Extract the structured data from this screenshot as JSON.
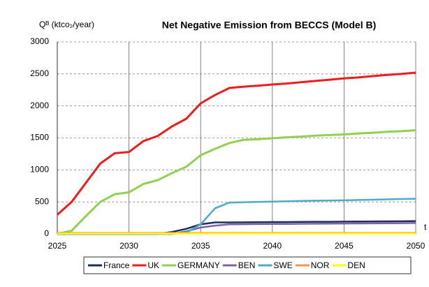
{
  "chart_data": {
    "type": "line",
    "title": "Net Negative Emission from BECCS (Model B)",
    "y_label": "Qᴮ (ktco₂/year)",
    "x_label": "t",
    "x": [
      2025,
      2026,
      2027,
      2028,
      2029,
      2030,
      2031,
      2032,
      2033,
      2034,
      2035,
      2036,
      2037,
      2038,
      2039,
      2040,
      2041,
      2042,
      2043,
      2044,
      2045,
      2046,
      2047,
      2048,
      2049,
      2050
    ],
    "series": [
      {
        "name": "France",
        "color": "#1f2d5c",
        "values": [
          0,
          0,
          0,
          0,
          0,
          0,
          0,
          0,
          30,
          80,
          150,
          180,
          180,
          182,
          184,
          185,
          186,
          188,
          189,
          190,
          192,
          194,
          195,
          196,
          198,
          200
        ]
      },
      {
        "name": "UK",
        "color": "#ee1c1c",
        "values": [
          300,
          500,
          800,
          1100,
          1260,
          1280,
          1450,
          1530,
          1680,
          1800,
          2040,
          2170,
          2280,
          2300,
          2315,
          2335,
          2350,
          2370,
          2390,
          2410,
          2430,
          2445,
          2465,
          2485,
          2500,
          2520
        ]
      },
      {
        "name": "GERMANY",
        "color": "#92d050",
        "values": [
          0,
          50,
          280,
          500,
          620,
          650,
          780,
          840,
          950,
          1050,
          1230,
          1330,
          1420,
          1470,
          1480,
          1495,
          1510,
          1520,
          1535,
          1545,
          1555,
          1570,
          1580,
          1595,
          1605,
          1620
        ]
      },
      {
        "name": "BEN",
        "color": "#8064a2",
        "values": [
          0,
          0,
          0,
          0,
          0,
          0,
          0,
          0,
          0,
          40,
          100,
          130,
          150,
          152,
          154,
          155,
          156,
          158,
          160,
          161,
          162,
          164,
          165,
          166,
          168,
          170
        ]
      },
      {
        "name": "SWE",
        "color": "#4bacc6",
        "values": [
          0,
          0,
          0,
          0,
          0,
          0,
          0,
          0,
          0,
          20,
          150,
          400,
          490,
          495,
          500,
          505,
          510,
          515,
          520,
          522,
          525,
          530,
          535,
          540,
          545,
          550
        ]
      },
      {
        "name": "NOR",
        "color": "#f79646",
        "values": [
          15,
          15,
          15,
          15,
          15,
          15,
          15,
          15,
          15,
          15,
          15,
          15,
          15,
          15,
          15,
          15,
          15,
          15,
          15,
          15,
          15,
          15,
          15,
          15,
          15,
          15
        ]
      },
      {
        "name": "DEN",
        "color": "#ffff00",
        "values": [
          5,
          5,
          5,
          5,
          5,
          5,
          5,
          5,
          5,
          5,
          5,
          5,
          5,
          5,
          5,
          5,
          5,
          5,
          5,
          5,
          5,
          5,
          5,
          5,
          5,
          5
        ]
      }
    ],
    "xlim": [
      2025,
      2050
    ],
    "xticks": [
      2025,
      2030,
      2035,
      2040,
      2045,
      2050
    ],
    "ylim": [
      0,
      3000
    ],
    "yticks": [
      0,
      500,
      1000,
      1500,
      2000,
      2500,
      3000
    ],
    "grid": true,
    "legend": "bottom"
  }
}
